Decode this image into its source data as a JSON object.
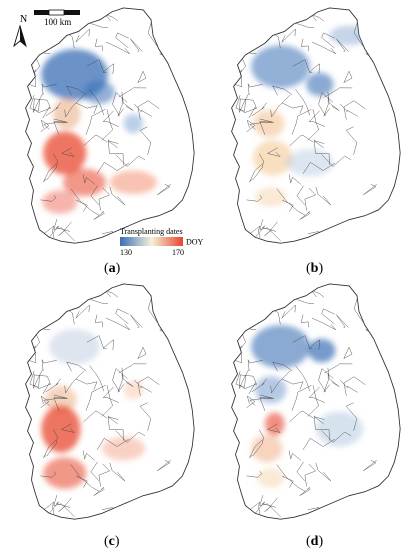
{
  "scale_bar": {
    "label": "100 km"
  },
  "north_arrow": {
    "label": "N"
  },
  "legend": {
    "title": "Transplanting dates",
    "min": "130",
    "max": "170",
    "unit": "DOY",
    "color_low": "#3b6fb6",
    "color_mid": "#f4f1d8",
    "color_high": "#e8452c"
  },
  "panels": [
    {
      "id": "a",
      "label": "a",
      "pattern": "north-blue-south-red"
    },
    {
      "id": "b",
      "label": "b",
      "pattern": "mostly-blue-light-orange"
    },
    {
      "id": "c",
      "label": "c",
      "pattern": "west-red"
    },
    {
      "id": "d",
      "label": "d",
      "pattern": "blue-with-scattered-orange"
    }
  ],
  "colors": {
    "outline": "#333333",
    "background": "#ffffff"
  }
}
